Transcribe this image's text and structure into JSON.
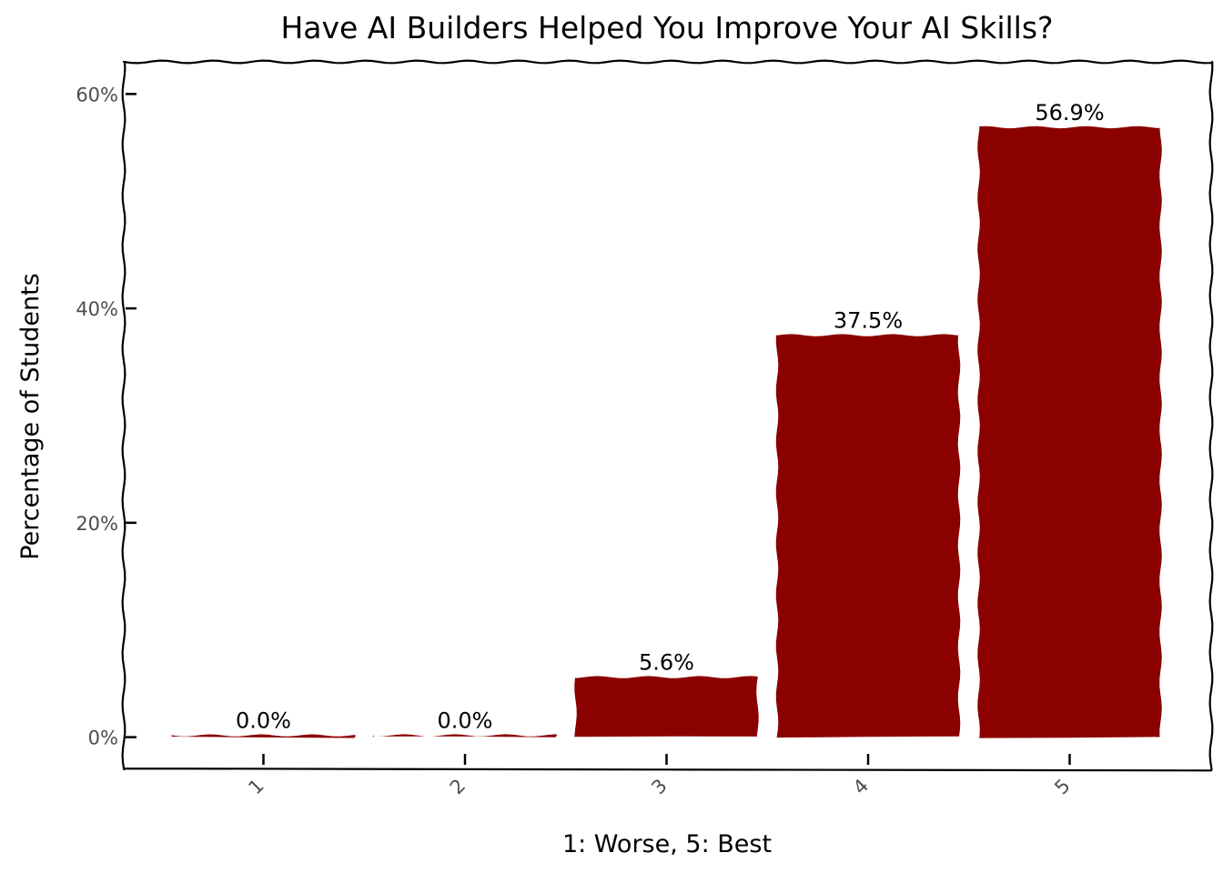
{
  "chart_data": {
    "type": "bar",
    "title": "Have AI Builders Helped You Improve Your AI Skills?",
    "xlabel": "1: Worse, 5: Best",
    "ylabel": "Percentage of Students",
    "categories": [
      "1",
      "2",
      "3",
      "4",
      "5"
    ],
    "values": [
      0.0,
      0.0,
      5.6,
      37.5,
      56.9
    ],
    "data_labels": [
      "0.0%",
      "0.0%",
      "5.6%",
      "37.5%",
      "56.9%"
    ],
    "ylim": [
      -3,
      63
    ],
    "yticks": [
      0,
      20,
      40,
      60
    ],
    "ytick_labels": [
      "0%",
      "20%",
      "40%",
      "60%"
    ],
    "grid": false,
    "bar_color": "#8b0000"
  }
}
